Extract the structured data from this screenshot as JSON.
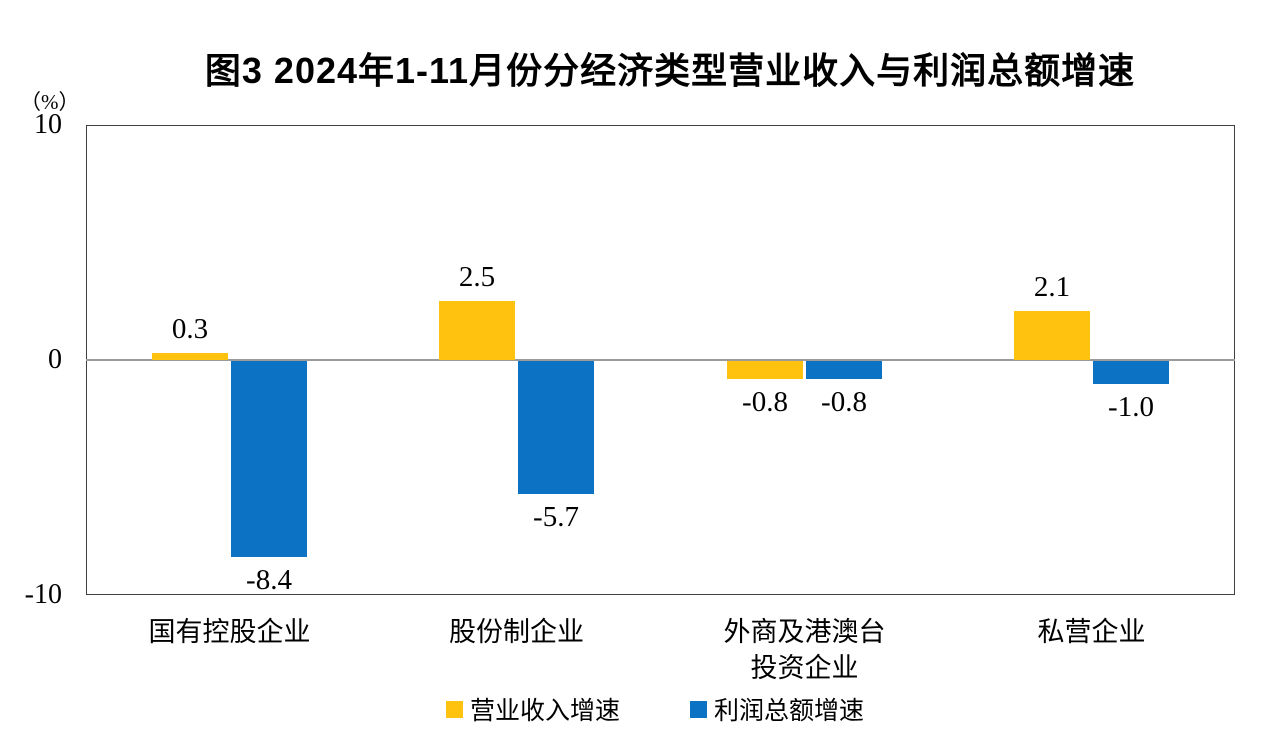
{
  "title": "图3  2024年1-11月份分经济类型营业收入与利润总额增速",
  "y_axis": {
    "unit_label": "（%）",
    "ticks": [
      {
        "value": 10,
        "label": "10"
      },
      {
        "value": 0,
        "label": "0"
      },
      {
        "value": -10,
        "label": "-10"
      }
    ]
  },
  "colors": {
    "revenue_series": "#FFC20E",
    "profit_series": "#0C72C4",
    "zero_line": "#9B9B9B",
    "plot_border": "#404040"
  },
  "chart_data": {
    "type": "bar",
    "title": "图3  2024年1-11月份分经济类型营业收入与利润总额增速",
    "xlabel": "",
    "ylabel": "（%）",
    "ylim": [
      -10,
      10
    ],
    "grid": false,
    "legend_position": "bottom",
    "categories": [
      "国有控股企业",
      "股份制企业",
      "外商及港澳台\n投资企业",
      "私营企业"
    ],
    "series": [
      {
        "name": "营业收入增速",
        "color": "#FFC20E",
        "values": [
          0.3,
          2.5,
          -0.8,
          2.1
        ],
        "labels": [
          "0.3",
          "2.5",
          "-0.8",
          "2.1"
        ]
      },
      {
        "name": "利润总额增速",
        "color": "#0C72C4",
        "values": [
          -8.4,
          -5.7,
          -0.8,
          -1.0
        ],
        "labels": [
          "-8.4",
          "-5.7",
          "-0.8",
          "-1.0"
        ]
      }
    ]
  }
}
